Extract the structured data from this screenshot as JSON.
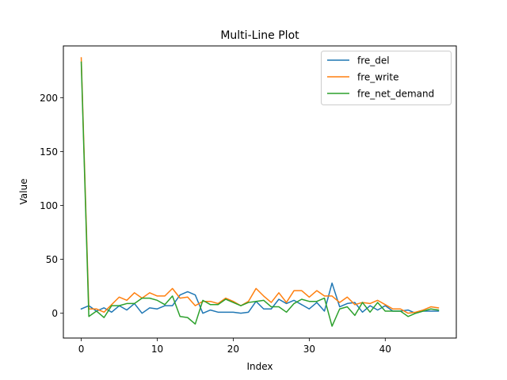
{
  "chart_data": {
    "type": "line",
    "title": "Multi-Line Plot",
    "xlabel": "Index",
    "ylabel": "Value",
    "xlim": [
      -2.35,
      49.35
    ],
    "ylim": [
      -23,
      248
    ],
    "xticks": [
      0,
      10,
      20,
      30,
      40
    ],
    "yticks": [
      0,
      50,
      100,
      150,
      200
    ],
    "grid": false,
    "legend_position": "top-right",
    "x": [
      0,
      1,
      2,
      3,
      4,
      5,
      6,
      7,
      8,
      9,
      10,
      11,
      12,
      13,
      14,
      15,
      16,
      17,
      18,
      19,
      20,
      21,
      22,
      23,
      24,
      25,
      26,
      27,
      28,
      29,
      30,
      31,
      32,
      33,
      34,
      35,
      36,
      37,
      38,
      39,
      40,
      41,
      42,
      43,
      44,
      45,
      46,
      47
    ],
    "series": [
      {
        "name": "fre_del",
        "color": "#1f77b4",
        "values": [
          4,
          7,
          2,
          5,
          1,
          7,
          3,
          9,
          0,
          5,
          4,
          7,
          7,
          17,
          20,
          17,
          0,
          3,
          1,
          1,
          1,
          0,
          1,
          11,
          4,
          4,
          13,
          9,
          12,
          8,
          4,
          10,
          2,
          28,
          6,
          9,
          10,
          1,
          7,
          3,
          7,
          2,
          2,
          3,
          0,
          2,
          2,
          2
        ]
      },
      {
        "name": "fre_write",
        "color": "#ff7f0e",
        "values": [
          237,
          4,
          4,
          1,
          8,
          15,
          12,
          19,
          14,
          19,
          16,
          16,
          23,
          14,
          15,
          7,
          11,
          11,
          9,
          14,
          11,
          7,
          11,
          23,
          16,
          10,
          19,
          10,
          21,
          21,
          15,
          21,
          16,
          16,
          10,
          15,
          8,
          10,
          9,
          12,
          8,
          4,
          4,
          0,
          1,
          3,
          6,
          5
        ]
      },
      {
        "name": "fre_net_demand",
        "color": "#2ca02c",
        "values": [
          233,
          -3,
          2,
          -4,
          7,
          7,
          9,
          9,
          14,
          14,
          12,
          8,
          16,
          -3,
          -4,
          -10,
          12,
          8,
          8,
          13,
          10,
          7,
          10,
          11,
          12,
          6,
          6,
          1,
          9,
          13,
          11,
          11,
          14,
          -12,
          4,
          6,
          -2,
          10,
          1,
          10,
          2,
          2,
          2,
          -3,
          0,
          2,
          4,
          3
        ]
      }
    ]
  }
}
